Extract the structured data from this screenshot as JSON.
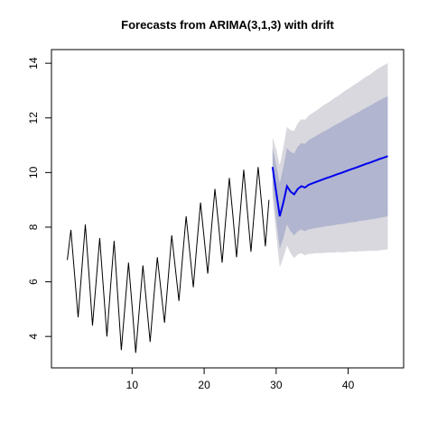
{
  "chart_data": {
    "type": "line",
    "title": "Forecasts from ARIMA(3,1,3) with drift",
    "x": [
      1,
      1.5,
      2,
      2.5,
      3,
      3.5,
      4,
      4.5,
      5,
      5.5,
      6,
      6.5,
      7,
      7.5,
      8,
      8.5,
      9,
      9.5,
      10,
      10.5,
      11,
      11.5,
      12,
      12.5,
      13,
      13.5,
      14,
      14.5,
      15,
      15.5,
      16,
      16.5,
      17,
      17.5,
      18,
      18.5,
      19,
      19.5,
      20,
      20.5,
      21,
      21.5,
      22,
      22.5,
      23,
      23.5,
      24,
      24.5,
      25,
      25.5,
      26,
      26.5,
      27,
      27.5,
      28,
      28.5,
      29
    ],
    "values": [
      6.8,
      7.9,
      6.3,
      4.7,
      6.4,
      8.1,
      6.3,
      4.4,
      6.0,
      7.6,
      5.8,
      4.0,
      5.8,
      7.5,
      5.5,
      3.5,
      5.1,
      6.7,
      5.1,
      3.4,
      5.0,
      6.6,
      5.2,
      3.8,
      5.4,
      6.9,
      5.7,
      4.5,
      6.1,
      7.7,
      6.5,
      5.3,
      6.9,
      8.4,
      7.1,
      5.8,
      7.4,
      8.9,
      7.6,
      6.3,
      7.9,
      9.4,
      8.1,
      6.7,
      8.3,
      9.8,
      8.4,
      6.9,
      8.5,
      10.1,
      8.6,
      7.1,
      8.7,
      10.2,
      8.8,
      7.3,
      9.0
    ],
    "color": "#000000",
    "forecast": {
      "x": [
        29.5,
        30,
        30.5,
        31,
        31.5,
        32,
        32.5,
        33,
        33.5,
        34,
        34.5,
        35,
        35.5,
        36,
        36.5,
        37,
        37.5,
        38,
        38.5,
        39,
        39.5,
        40,
        40.5,
        41,
        41.5,
        42,
        42.5,
        43,
        43.5,
        44,
        44.5,
        45,
        45.5
      ],
      "mean": [
        10.2,
        9.3,
        8.4,
        8.9,
        9.5,
        9.3,
        9.2,
        9.4,
        9.5,
        9.45,
        9.55,
        9.6,
        9.65,
        9.7,
        9.75,
        9.8,
        9.84,
        9.89,
        9.94,
        9.98,
        10.03,
        10.08,
        10.13,
        10.17,
        10.22,
        10.27,
        10.32,
        10.36,
        10.41,
        10.46,
        10.51,
        10.55,
        10.6
      ],
      "upper80": [
        10.9,
        10.3,
        9.6,
        10.2,
        10.9,
        10.75,
        10.7,
        10.95,
        11.08,
        11.05,
        11.18,
        11.26,
        11.33,
        11.41,
        11.49,
        11.56,
        11.63,
        11.71,
        11.78,
        11.85,
        11.93,
        12.0,
        12.08,
        12.15,
        12.22,
        12.3,
        12.38,
        12.44,
        12.52,
        12.6,
        12.67,
        12.73,
        12.8
      ],
      "lower80": [
        9.5,
        8.3,
        7.2,
        7.6,
        8.1,
        7.85,
        7.7,
        7.85,
        7.92,
        7.85,
        7.92,
        7.94,
        7.97,
        7.99,
        8.01,
        8.04,
        8.05,
        8.07,
        8.1,
        8.11,
        8.13,
        8.16,
        8.18,
        8.19,
        8.22,
        8.24,
        8.26,
        8.28,
        8.3,
        8.32,
        8.35,
        8.37,
        8.4
      ],
      "upper95": [
        11.29,
        10.85,
        10.26,
        10.92,
        11.67,
        11.55,
        11.53,
        11.8,
        11.95,
        11.93,
        12.08,
        12.17,
        12.25,
        12.35,
        12.45,
        12.53,
        12.61,
        12.71,
        12.79,
        12.88,
        12.98,
        13.06,
        13.15,
        13.24,
        13.32,
        13.42,
        13.51,
        13.58,
        13.68,
        13.78,
        13.86,
        13.93,
        14.01
      ],
      "lower95": [
        9.11,
        7.75,
        6.54,
        6.88,
        7.33,
        7.05,
        6.87,
        7.0,
        7.05,
        6.97,
        7.02,
        7.03,
        7.05,
        7.05,
        7.05,
        7.07,
        7.07,
        7.07,
        7.09,
        7.08,
        7.08,
        7.1,
        7.11,
        7.1,
        7.12,
        7.12,
        7.13,
        7.14,
        7.14,
        7.14,
        7.16,
        7.17,
        7.19
      ],
      "mean_color": "#0000ee",
      "band80_color": "#b1b5cf",
      "band95_color": "#d8d8de"
    },
    "xlim": [
      -1.2,
      47.7
    ],
    "ylim": [
      2.85,
      14.5
    ],
    "xticks": [
      10,
      20,
      30,
      40
    ],
    "yticks": [
      4,
      6,
      8,
      10,
      12,
      14
    ]
  }
}
